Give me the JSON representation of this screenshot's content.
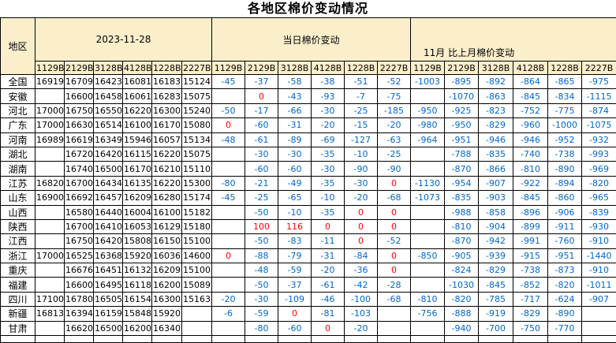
{
  "title": "各地区棉价变动情况",
  "colors": {
    "header_bg": "#FBEFCB",
    "negative_text": "#0066CC",
    "zero_or_positive_text": "#FF0000",
    "grid": "#000000"
  },
  "table": {
    "region_header": "地区",
    "sections": [
      {
        "label": "2023-11-28",
        "columns": [
          "1129B",
          "2129B",
          "3128B",
          "4128B",
          "1228B",
          "2227B"
        ]
      },
      {
        "label": "当日棉价变动",
        "columns": [
          "1129B",
          "2129B",
          "3128B",
          "4128B",
          "1228B",
          "2227B"
        ]
      },
      {
        "label": "11月 比上月棉价变动",
        "columns": [
          "1129B",
          "2129B",
          "3128B",
          "4128B",
          "1228B",
          "2227B"
        ]
      }
    ],
    "rows": [
      {
        "region": "全国",
        "prices": [
          "16919",
          "16709",
          "16423",
          "16081",
          "16183",
          "15124"
        ],
        "daily_change": [
          "-45",
          "-37",
          "-58",
          "-38",
          "-51",
          "-52"
        ],
        "monthly_change": [
          "-1003",
          "-895",
          "-892",
          "-864",
          "-865",
          "-975"
        ]
      },
      {
        "region": "安徽",
        "prices": [
          "",
          "16600",
          "16458",
          "16061",
          "16283",
          "15075"
        ],
        "daily_change": [
          "",
          "0",
          "-43",
          "-93",
          "-7",
          "-75"
        ],
        "monthly_change": [
          "",
          "-1070",
          "-863",
          "-845",
          "-834",
          "-1115"
        ]
      },
      {
        "region": "河北",
        "prices": [
          "17000",
          "16750",
          "16550",
          "16220",
          "16300",
          "15240"
        ],
        "daily_change": [
          "-50",
          "-17",
          "-66",
          "-30",
          "-25",
          "-185"
        ],
        "monthly_change": [
          "-950",
          "-925",
          "-823",
          "-752",
          "-775",
          "-874"
        ]
      },
      {
        "region": "广东",
        "prices": [
          "17000",
          "16630",
          "16514",
          "16100",
          "16170",
          "15080"
        ],
        "daily_change": [
          "0",
          "-60",
          "-31",
          "-20",
          "-15",
          "-20"
        ],
        "monthly_change": [
          "-980",
          "-950",
          "-829",
          "-960",
          "-1000",
          "-1075"
        ]
      },
      {
        "region": "河南",
        "prices": [
          "16989",
          "16619",
          "16349",
          "15946",
          "16057",
          "15134"
        ],
        "daily_change": [
          "-48",
          "-61",
          "-89",
          "-69",
          "-127",
          "-63"
        ],
        "monthly_change": [
          "-964",
          "-951",
          "-946",
          "-946",
          "-952",
          "-932"
        ]
      },
      {
        "region": "湖北",
        "prices": [
          "",
          "16720",
          "16420",
          "16115",
          "16220",
          "15075"
        ],
        "daily_change": [
          "",
          "-30",
          "-30",
          "-35",
          "-10",
          "-25"
        ],
        "monthly_change": [
          "",
          "-788",
          "-835",
          "-740",
          "-738",
          "-993"
        ]
      },
      {
        "region": "湖南",
        "prices": [
          "",
          "16740",
          "16500",
          "16170",
          "16210",
          "15110"
        ],
        "daily_change": [
          "",
          "-60",
          "-60",
          "-30",
          "-90",
          "-90"
        ],
        "monthly_change": [
          "",
          "-870",
          "-866",
          "-810",
          "-890",
          "-969"
        ]
      },
      {
        "region": "江苏",
        "prices": [
          "16820",
          "16700",
          "16434",
          "16135",
          "16220",
          "15300"
        ],
        "daily_change": [
          "-80",
          "-21",
          "-49",
          "-35",
          "-30",
          "0"
        ],
        "monthly_change": [
          "-1130",
          "-954",
          "-907",
          "-922",
          "-894",
          "-820"
        ]
      },
      {
        "region": "山东",
        "prices": [
          "16900",
          "16692",
          "16457",
          "16209",
          "16280",
          "15174"
        ],
        "daily_change": [
          "-45",
          "-25",
          "-65",
          "-10",
          "-20",
          "-68"
        ],
        "monthly_change": [
          "-1073",
          "-835",
          "-903",
          "-845",
          "-860",
          "-965"
        ]
      },
      {
        "region": "山西",
        "prices": [
          "",
          "16580",
          "16440",
          "16004",
          "16100",
          "15182"
        ],
        "daily_change": [
          "",
          "-50",
          "-10",
          "-35",
          "0",
          "0"
        ],
        "monthly_change": [
          "",
          "-988",
          "-858",
          "-896",
          "-906",
          "-839"
        ]
      },
      {
        "region": "陕西",
        "prices": [
          "",
          "16700",
          "16410",
          "16053",
          "16129",
          "15180"
        ],
        "daily_change": [
          "",
          "100",
          "116",
          "0",
          "0",
          "0"
        ],
        "monthly_change": [
          "",
          "-810",
          "-904",
          "-899",
          "-911",
          "-930"
        ]
      },
      {
        "region": "江西",
        "prices": [
          "",
          "16750",
          "16420",
          "15808",
          "16150",
          "15100"
        ],
        "daily_change": [
          "",
          "-50",
          "-83",
          "-11",
          "0",
          "-52"
        ],
        "monthly_change": [
          "",
          "-870",
          "-942",
          "-991",
          "-760",
          "-910"
        ]
      },
      {
        "region": "浙江",
        "prices": [
          "17000",
          "16525",
          "16368",
          "15920",
          "16036",
          "14600"
        ],
        "daily_change": [
          "0",
          "-88",
          "-79",
          "-31",
          "-84",
          "0"
        ],
        "monthly_change": [
          "-850",
          "-905",
          "-939",
          "-915",
          "-951",
          "-1440"
        ]
      },
      {
        "region": "重庆",
        "prices": [
          "",
          "16676",
          "16451",
          "16132",
          "16209",
          "15100"
        ],
        "daily_change": [
          "",
          "-48",
          "-59",
          "-20",
          "-36",
          "0"
        ],
        "monthly_change": [
          "",
          "-824",
          "-829",
          "-738",
          "-873",
          "-910"
        ]
      },
      {
        "region": "福建",
        "prices": [
          "",
          "16600",
          "16495",
          "16118",
          "16200",
          "15089"
        ],
        "daily_change": [
          "",
          "-50",
          "-37",
          "-61",
          "-42",
          "-28"
        ],
        "monthly_change": [
          "",
          "-1030",
          "-845",
          "-852",
          "-820",
          "-1011"
        ]
      },
      {
        "region": "四川",
        "prices": [
          "17100",
          "16780",
          "16505",
          "16154",
          "16300",
          "15163"
        ],
        "daily_change": [
          "-20",
          "-30",
          "-109",
          "-46",
          "-100",
          "-68"
        ],
        "monthly_change": [
          "-810",
          "-820",
          "-785",
          "-717",
          "-624",
          "-907"
        ]
      },
      {
        "region": "新疆",
        "prices": [
          "16813",
          "16394",
          "16159",
          "15848",
          "15920",
          ""
        ],
        "daily_change": [
          "-6",
          "-59",
          "0",
          "-81",
          "-103",
          ""
        ],
        "monthly_change": [
          "-756",
          "-888",
          "-919",
          "-829",
          "-890",
          ""
        ]
      },
      {
        "region": "甘肃",
        "prices": [
          "",
          "16620",
          "16500",
          "16200",
          "16340",
          ""
        ],
        "daily_change": [
          "",
          "-80",
          "-60",
          "0",
          "-20",
          ""
        ],
        "monthly_change": [
          "",
          "-940",
          "-700",
          "-750",
          "-770",
          ""
        ]
      }
    ]
  }
}
